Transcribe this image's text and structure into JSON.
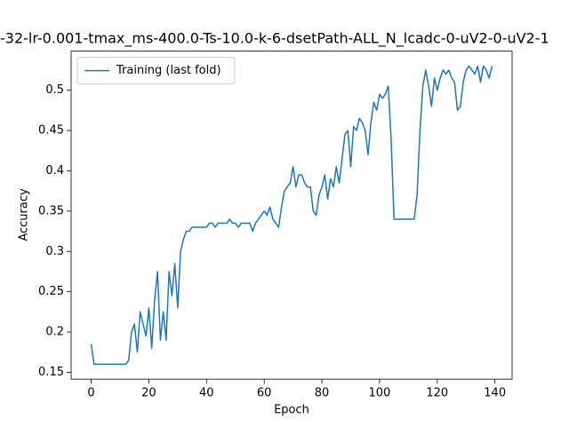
{
  "chart_data": {
    "type": "line",
    "title": "-32-lr-0.001-tmax_ms-400.0-Ts-10.0-k-6-dsetPath-ALL_N_lcadc-0-uV2-0-uV2-1",
    "x_label": "Epoch",
    "y_label": "Accuracy",
    "x": [
      0,
      1,
      2,
      3,
      4,
      5,
      6,
      7,
      8,
      9,
      10,
      11,
      12,
      13,
      14,
      15,
      16,
      17,
      18,
      19,
      20,
      21,
      22,
      23,
      24,
      25,
      26,
      27,
      28,
      29,
      30,
      31,
      32,
      33,
      34,
      35,
      36,
      37,
      38,
      39,
      40,
      41,
      42,
      43,
      44,
      45,
      46,
      47,
      48,
      49,
      50,
      51,
      52,
      53,
      54,
      55,
      56,
      57,
      58,
      59,
      60,
      61,
      62,
      63,
      64,
      65,
      66,
      67,
      68,
      69,
      70,
      71,
      72,
      73,
      74,
      75,
      76,
      77,
      78,
      79,
      80,
      81,
      82,
      83,
      84,
      85,
      86,
      87,
      88,
      89,
      90,
      91,
      92,
      93,
      94,
      95,
      96,
      97,
      98,
      99,
      100,
      101,
      102,
      103,
      104,
      105,
      106,
      107,
      108,
      109,
      110,
      111,
      112,
      113,
      114,
      115,
      116,
      117,
      118,
      119,
      120,
      121,
      122,
      123,
      124,
      125,
      126,
      127,
      128,
      129,
      130,
      131,
      132,
      133,
      134,
      135,
      136,
      137,
      138,
      139
    ],
    "series": [
      {
        "name": "Training (last fold)",
        "color": "#1f77b4",
        "values": [
          0.185,
          0.16,
          0.16,
          0.16,
          0.16,
          0.16,
          0.16,
          0.16,
          0.16,
          0.16,
          0.16,
          0.16,
          0.16,
          0.165,
          0.2,
          0.21,
          0.175,
          0.225,
          0.21,
          0.195,
          0.23,
          0.18,
          0.24,
          0.275,
          0.19,
          0.225,
          0.19,
          0.275,
          0.245,
          0.285,
          0.23,
          0.3,
          0.315,
          0.325,
          0.325,
          0.33,
          0.33,
          0.33,
          0.33,
          0.33,
          0.33,
          0.335,
          0.335,
          0.33,
          0.335,
          0.335,
          0.335,
          0.335,
          0.34,
          0.335,
          0.335,
          0.33,
          0.335,
          0.335,
          0.335,
          0.335,
          0.325,
          0.335,
          0.34,
          0.345,
          0.35,
          0.345,
          0.355,
          0.34,
          0.335,
          0.33,
          0.355,
          0.375,
          0.38,
          0.385,
          0.405,
          0.38,
          0.395,
          0.395,
          0.385,
          0.38,
          0.38,
          0.35,
          0.345,
          0.37,
          0.38,
          0.395,
          0.365,
          0.39,
          0.38,
          0.405,
          0.385,
          0.415,
          0.445,
          0.45,
          0.405,
          0.455,
          0.45,
          0.465,
          0.46,
          0.45,
          0.42,
          0.46,
          0.485,
          0.475,
          0.495,
          0.49,
          0.495,
          0.505,
          0.44,
          0.34,
          0.34,
          0.34,
          0.34,
          0.34,
          0.34,
          0.34,
          0.34,
          0.37,
          0.45,
          0.505,
          0.525,
          0.505,
          0.48,
          0.515,
          0.5,
          0.515,
          0.525,
          0.52,
          0.525,
          0.515,
          0.51,
          0.475,
          0.48,
          0.51,
          0.525,
          0.53,
          0.525,
          0.52,
          0.53,
          0.51,
          0.53,
          0.525,
          0.515,
          0.53
        ]
      }
    ],
    "xlim": [
      -6.95,
      145.95
    ],
    "xticks": [
      0,
      20,
      40,
      60,
      80,
      100,
      120,
      140
    ],
    "ylim": [
      0.1415,
      0.5485
    ],
    "yticks": [
      0.15,
      0.2,
      0.25,
      0.3,
      0.35,
      0.4,
      0.45,
      0.5
    ],
    "grid": false,
    "legend": "upper left"
  }
}
